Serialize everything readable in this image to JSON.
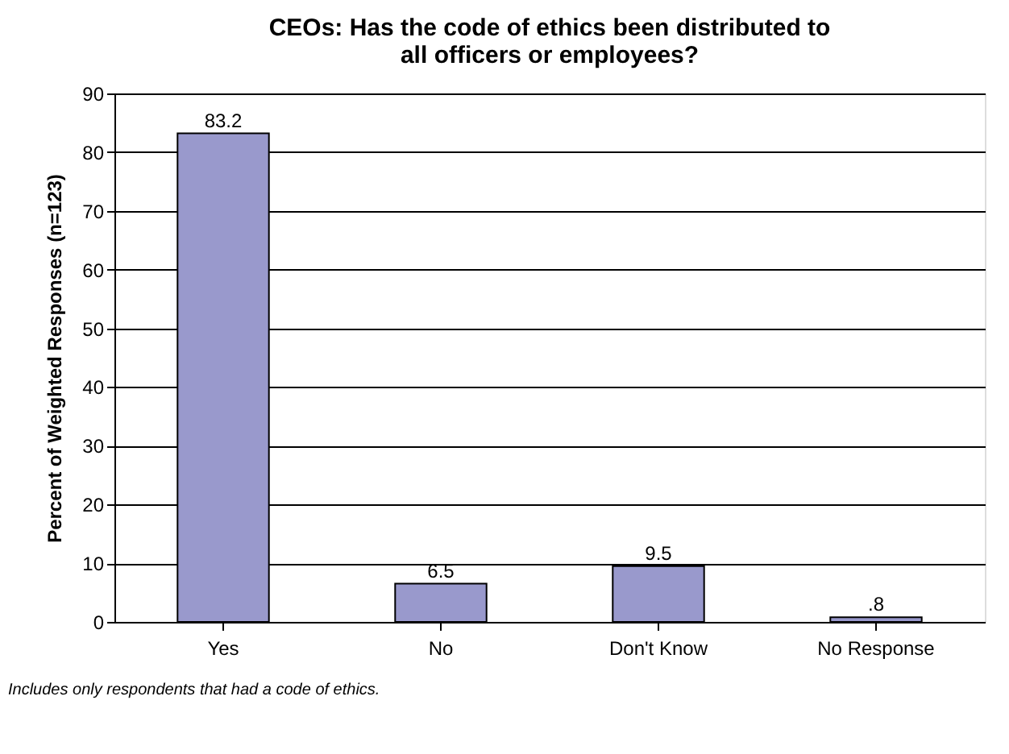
{
  "chart_data": {
    "type": "bar",
    "title": [
      "CEOs: Has the code of ethics been distributed to",
      "all officers or employees?"
    ],
    "ylabel": "Percent of Weighted Responses (n=123)",
    "categories": [
      "Yes",
      "No",
      "Don't Know",
      "No Response"
    ],
    "values": [
      83.2,
      6.5,
      9.5,
      0.8
    ],
    "value_labels": [
      "83.2",
      "6.5",
      "9.5",
      ".8"
    ],
    "color": "#9999cc",
    "ylim": [
      0,
      90
    ],
    "yticks": [
      0,
      10,
      20,
      30,
      40,
      50,
      60,
      70,
      80,
      90
    ],
    "grid": "y",
    "annotations": [
      "Includes only respondents that had a code of ethics."
    ]
  }
}
